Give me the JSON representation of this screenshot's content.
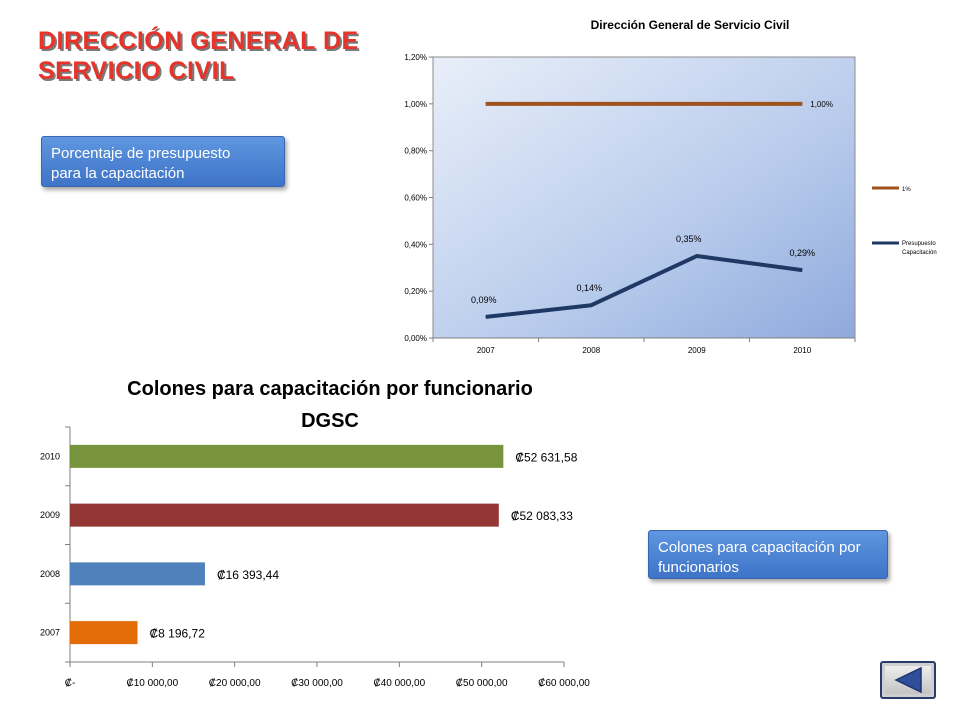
{
  "slide": {
    "title_lines": [
      "DIRECCIÓN GENERAL DE",
      "SERVICIO CIVIL"
    ],
    "callout_top_lines": [
      "Porcentaje de presupuesto",
      "para la capacitación"
    ],
    "callout_bottom_lines": [
      "Colones para capacitación por",
      "funcionarios"
    ],
    "nav_back_icon": "back-triangle-icon"
  },
  "chart_data": [
    {
      "type": "line",
      "title": "Dirección General de Servicio Civil",
      "categories": [
        "2007",
        "2008",
        "2009",
        "2010"
      ],
      "y_ticks": [
        "0,00%",
        "0,20%",
        "0,40%",
        "0,60%",
        "0,80%",
        "1,00%",
        "1,20%"
      ],
      "ylim": [
        0,
        1.2
      ],
      "series": [
        {
          "name": "1%",
          "values": [
            1.0,
            1.0,
            1.0,
            1.0
          ],
          "labels": [
            "",
            "",
            "",
            "1,00%"
          ],
          "color": "#a0521e"
        },
        {
          "name": "Presupuesto Capacitación",
          "values": [
            0.09,
            0.14,
            0.35,
            0.29
          ],
          "labels": [
            "0,09%",
            "0,14%",
            "0,35%",
            "0,29%"
          ],
          "color": "#1f3864"
        }
      ],
      "legend": "right",
      "plot_background": "gradient-blue"
    },
    {
      "type": "bar",
      "orientation": "horizontal",
      "title_lines": [
        "Colones para capacitación por funcionario",
        "DGSC"
      ],
      "categories": [
        "2007",
        "2008",
        "2009",
        "2010"
      ],
      "values": [
        8196.72,
        16393.44,
        52083.33,
        52631.58
      ],
      "labels": [
        "₡8 196,72",
        "₡16 393,44",
        "₡52 083,33",
        "₡52 631,58"
      ],
      "colors": [
        "#e36c09",
        "#4f81bd",
        "#943634",
        "#77933c"
      ],
      "x_ticks": [
        "₡-",
        "₡10 000,00",
        "₡20 000,00",
        "₡30 000,00",
        "₡40 000,00",
        "₡50 000,00",
        "₡60 000,00"
      ],
      "xlim": [
        0,
        60000
      ]
    }
  ]
}
